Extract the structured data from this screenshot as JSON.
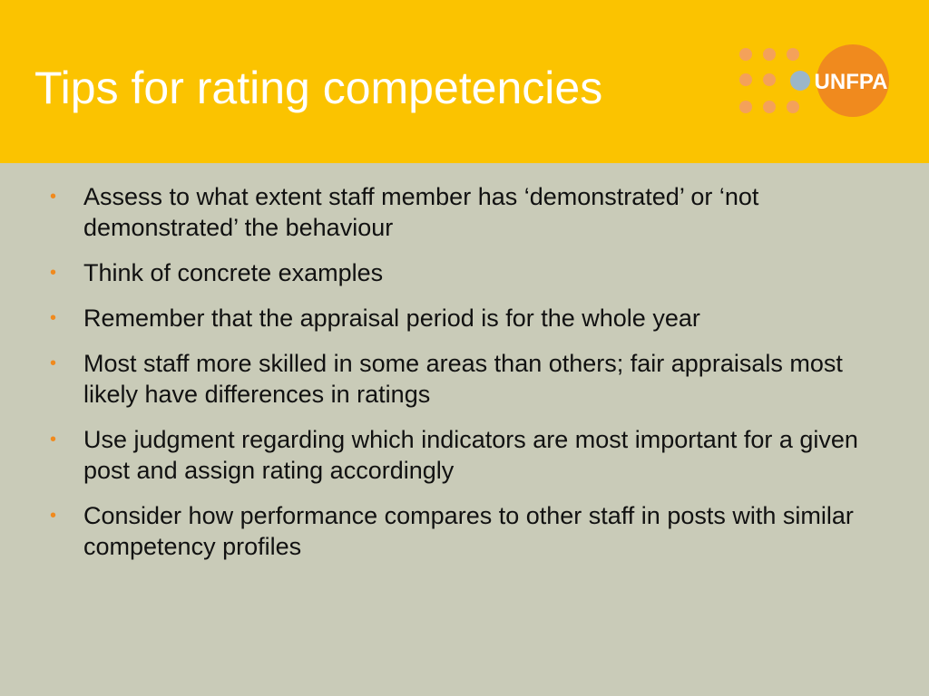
{
  "header": {
    "title": "Tips for rating competencies",
    "logo": "UNFPA"
  },
  "bullets": [
    "Assess to what extent staff member has ‘demonstrated’ or ‘not demonstrated’ the behaviour",
    "Think of concrete examples",
    "Remember that the appraisal period is for the whole year",
    "Most staff more skilled in some areas than others; fair appraisals most likely have differences in ratings",
    "Use judgment regarding which indicators are most important for a given post and assign rating accordingly",
    "Consider how performance compares to other staff in posts with similar competency profiles"
  ]
}
